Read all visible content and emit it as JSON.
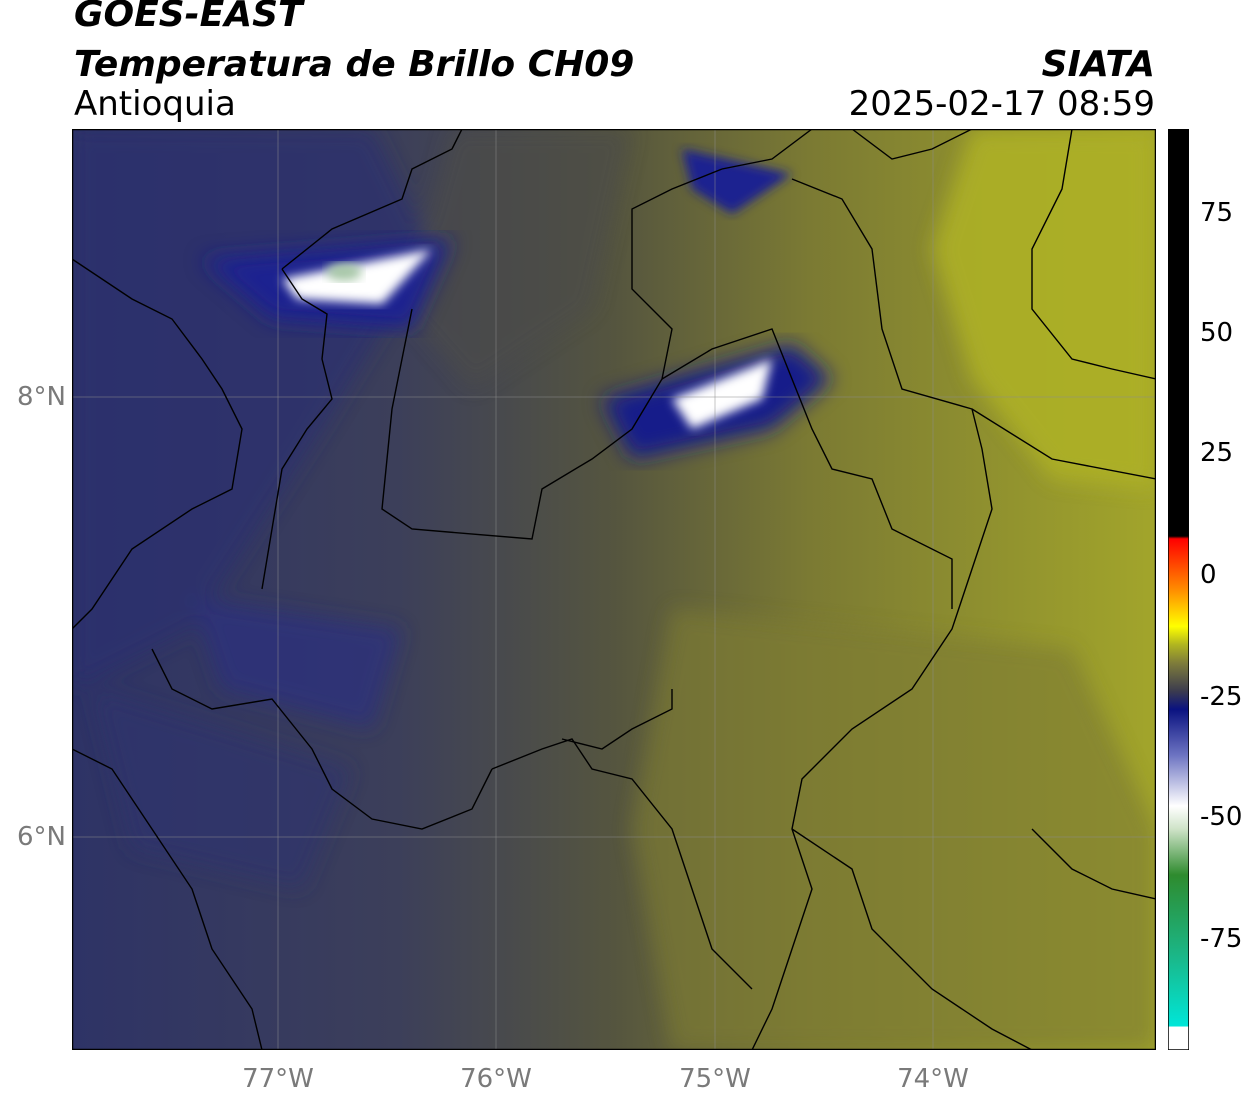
{
  "header": {
    "satellite": "GOES-EAST",
    "product": "Temperatura de Brillo CH09",
    "organization": "SIATA",
    "region": "Antioquia",
    "timestamp": "2025-02-17 08:59"
  },
  "map": {
    "lat_ticks": [
      "8°N",
      "6°N"
    ],
    "lon_ticks": [
      "77°W",
      "76°W",
      "75°W",
      "74°W"
    ],
    "extent": {
      "lon": [
        -77.95,
        -72.95
      ],
      "lat": [
        4.95,
        9.15
      ]
    }
  },
  "colorbar": {
    "ticks": [
      "75",
      "50",
      "25",
      "0",
      "-25",
      "-50",
      "-75"
    ],
    "range": [
      -95,
      90
    ],
    "colors": {
      "cold_cyan": "#00e6d8",
      "green": "#2e8b2e",
      "white": "#ffffff",
      "navy": "#0a1280",
      "dark_gray": "#3c3c4e",
      "olive": "#b0b520",
      "yellow": "#ffff00",
      "orange": "#ff8c00",
      "red": "#ff0000",
      "black": "#000000"
    }
  }
}
